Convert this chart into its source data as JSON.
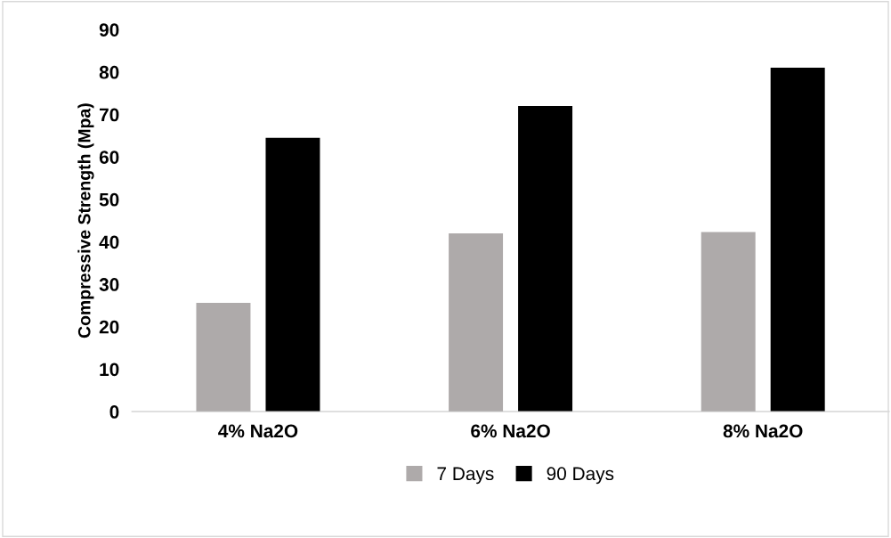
{
  "chart_data": {
    "type": "bar",
    "ylabel": "Compressive Strength (Mpa)",
    "categories": [
      "4% Na2O",
      "6% Na2O",
      "8% Na2O"
    ],
    "series": [
      {
        "name": "7 Days",
        "color": "#aeaaaa",
        "values": [
          25.6,
          42,
          42.3
        ]
      },
      {
        "name": "90 Days",
        "color": "#000000",
        "values": [
          64.5,
          72,
          81
        ]
      }
    ],
    "ylim": [
      0,
      90
    ],
    "yticks": [
      0,
      10,
      20,
      30,
      40,
      50,
      60,
      70,
      80,
      90
    ],
    "grid": false,
    "legend": "bottom"
  }
}
